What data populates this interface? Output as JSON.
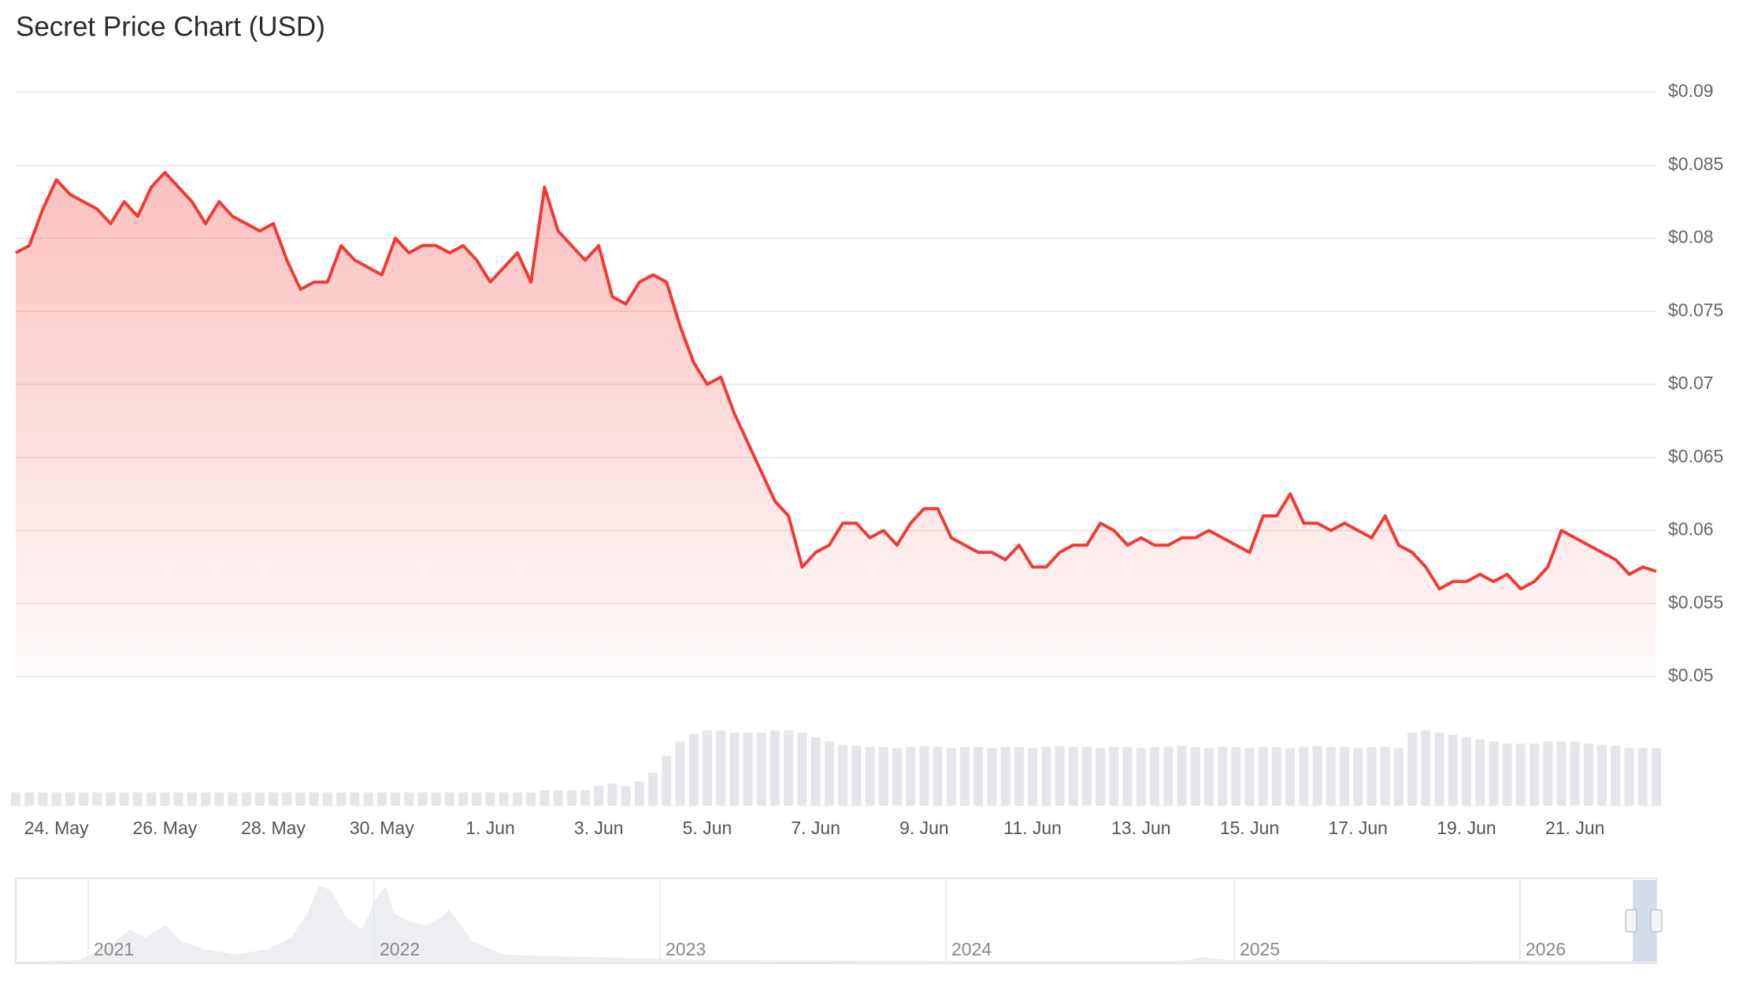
{
  "chart_data": {
    "type": "line",
    "title": "Secret Price Chart (USD)",
    "categories": [
      null,
      null,
      null,
      "24. May",
      null,
      null,
      null,
      null,
      null,
      null,
      null,
      "26. May",
      null,
      null,
      null,
      null,
      null,
      null,
      null,
      "28. May",
      null,
      null,
      null,
      null,
      null,
      null,
      null,
      "30. May",
      null,
      null,
      null,
      null,
      null,
      null,
      null,
      "1. Jun",
      null,
      null,
      null,
      null,
      null,
      null,
      null,
      "3. Jun",
      null,
      null,
      null,
      null,
      null,
      null,
      null,
      "5. Jun",
      null,
      null,
      null,
      null,
      null,
      null,
      null,
      "7. Jun",
      null,
      null,
      null,
      null,
      null,
      null,
      null,
      "9. Jun",
      null,
      null,
      null,
      null,
      null,
      null,
      null,
      "11. Jun",
      null,
      null,
      null,
      null,
      null,
      null,
      null,
      "13. Jun",
      null,
      null,
      null,
      null,
      null,
      null,
      null,
      "15. Jun",
      null,
      null,
      null,
      null,
      null,
      null,
      null,
      "17. Jun",
      null,
      null,
      null,
      null,
      null,
      null,
      null,
      "19. Jun",
      null,
      null,
      null,
      null,
      null,
      null,
      null,
      "21. Jun",
      null,
      null,
      null,
      null,
      null,
      null
    ],
    "series": [
      {
        "color": "#f03a35",
        "values": [
          0.079,
          0.0795,
          0.082,
          0.084,
          0.083,
          0.0825,
          0.082,
          0.081,
          0.0825,
          0.0815,
          0.0835,
          0.0845,
          0.0835,
          0.0825,
          0.081,
          0.0825,
          0.0815,
          0.081,
          0.0805,
          0.081,
          0.0785,
          0.0765,
          0.077,
          0.077,
          0.0795,
          0.0785,
          0.078,
          0.0775,
          0.08,
          0.079,
          0.0795,
          0.0795,
          0.079,
          0.0795,
          0.0785,
          0.077,
          0.078,
          0.079,
          0.077,
          0.0835,
          0.0805,
          0.0795,
          0.0785,
          0.0795,
          0.076,
          0.0755,
          0.077,
          0.0775,
          0.077,
          0.074,
          0.0715,
          0.07,
          0.0705,
          0.068,
          0.066,
          0.064,
          0.062,
          0.061,
          0.0575,
          0.0585,
          0.059,
          0.0605,
          0.0605,
          0.0595,
          0.06,
          0.059,
          0.0605,
          0.0615,
          0.0615,
          0.0595,
          0.059,
          0.0585,
          0.0585,
          0.058,
          0.059,
          0.0575,
          0.0575,
          0.0585,
          0.059,
          0.059,
          0.0605,
          0.06,
          0.059,
          0.0595,
          0.059,
          0.059,
          0.0595,
          0.0595,
          0.06,
          0.0595,
          0.059,
          0.0585,
          0.061,
          0.061,
          0.0625,
          0.0605,
          0.0605,
          0.06,
          0.0605,
          0.06,
          0.0595,
          0.061,
          0.059,
          0.0585,
          0.0575,
          0.056,
          0.0565,
          0.0565,
          0.057,
          0.0565,
          0.057,
          0.056,
          0.0565,
          0.0575,
          0.06,
          0.0595,
          0.059,
          0.0585,
          0.058,
          0.057,
          0.0575,
          0.0572
        ]
      }
    ],
    "volume": [
      12,
      12,
      12,
      12,
      12,
      12,
      12,
      12,
      12,
      12,
      12,
      12,
      12,
      12,
      12,
      12,
      12,
      12,
      12,
      12,
      12,
      12,
      12,
      12,
      12,
      12,
      12,
      12,
      12,
      12,
      12,
      12,
      12,
      12,
      12,
      12,
      12,
      12,
      12,
      14,
      14,
      14,
      14,
      18,
      20,
      18,
      22,
      30,
      45,
      58,
      65,
      68,
      68,
      66,
      66,
      66,
      68,
      68,
      66,
      62,
      58,
      55,
      54,
      53,
      53,
      52,
      53,
      54,
      53,
      52,
      53,
      53,
      52,
      53,
      53,
      52,
      53,
      54,
      53,
      53,
      52,
      53,
      53,
      52,
      53,
      53,
      54,
      53,
      52,
      53,
      53,
      52,
      53,
      53,
      52,
      53,
      54,
      53,
      53,
      52,
      53,
      53,
      52,
      66,
      68,
      66,
      64,
      62,
      60,
      58,
      56,
      56,
      56,
      58,
      58,
      58,
      56,
      55,
      54,
      52,
      52,
      52
    ],
    "ylim": [
      0.05,
      0.09
    ],
    "yticks": [
      {
        "value": 0.05,
        "label": "$0.05"
      },
      {
        "value": 0.055,
        "label": "$0.055"
      },
      {
        "value": 0.06,
        "label": "$0.06"
      },
      {
        "value": 0.065,
        "label": "$0.065"
      },
      {
        "value": 0.07,
        "label": "$0.07"
      },
      {
        "value": 0.075,
        "label": "$0.075"
      },
      {
        "value": 0.08,
        "label": "$0.08"
      },
      {
        "value": 0.085,
        "label": "$0.085"
      },
      {
        "value": 0.09,
        "label": "$0.09"
      }
    ],
    "grid": true,
    "navigator": {
      "labels": [
        "2021",
        "2022",
        "2023",
        "2024",
        "2025",
        "2026"
      ]
    }
  }
}
